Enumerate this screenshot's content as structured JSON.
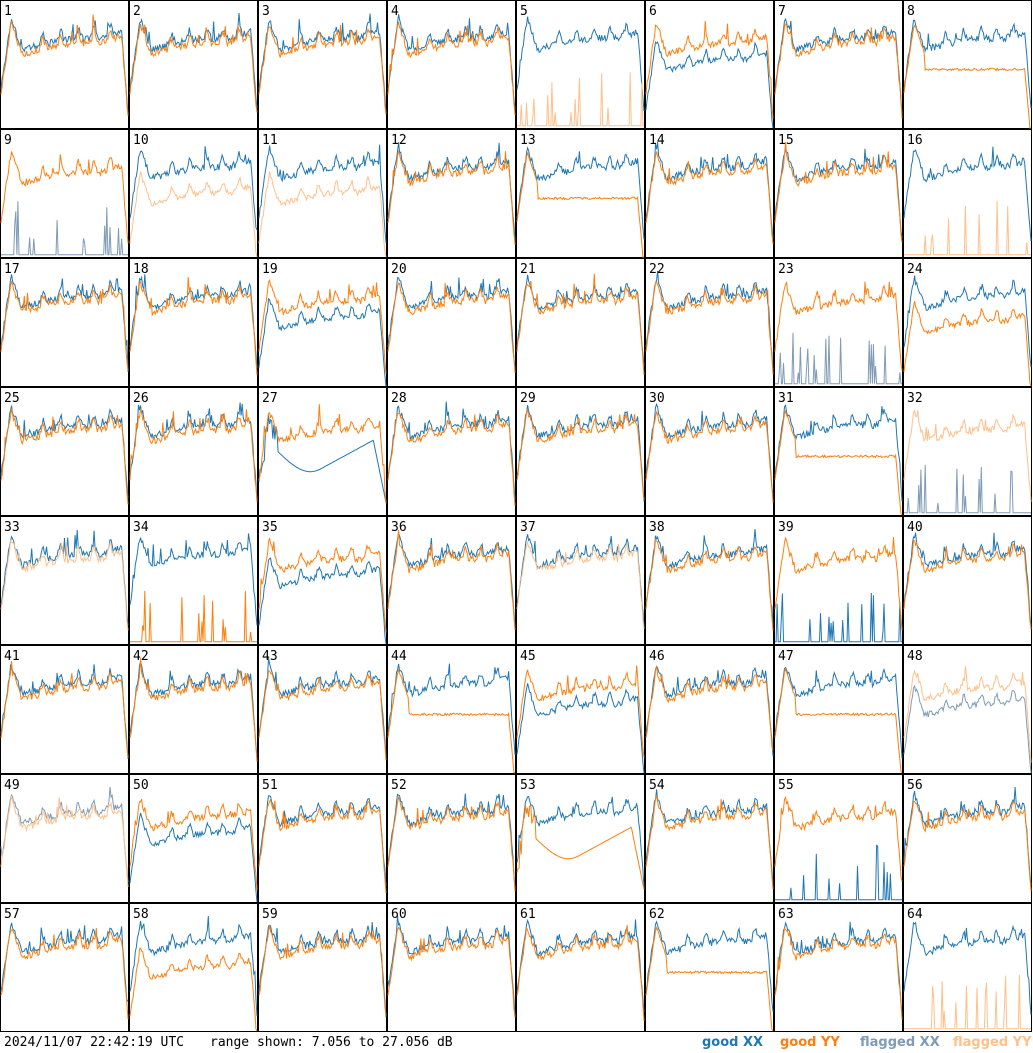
{
  "footer": {
    "timestamp": "2024/11/07 22:42:19 UTC",
    "range_text": "range shown: 7.056 to 27.056 dB"
  },
  "legend": [
    {
      "label": "good XX",
      "color": "#1f77b4"
    },
    {
      "label": "good YY",
      "color": "#ff7f0e"
    },
    {
      "label": "flagged XX",
      "color": "#7f9bb5"
    },
    {
      "label": "flagged YY",
      "color": "#ffc08a"
    }
  ],
  "chart_data": {
    "type": "line",
    "layout": "8x8 small multiples",
    "range_db": [
      7.056,
      27.056
    ],
    "grid": false,
    "panels": [
      {
        "id": "1",
        "xx": "good",
        "yy": "good",
        "xx_shape": "normal",
        "yy_shape": "normal"
      },
      {
        "id": "2",
        "xx": "good",
        "yy": "good",
        "xx_shape": "normal",
        "yy_shape": "normal"
      },
      {
        "id": "3",
        "xx": "good",
        "yy": "good",
        "xx_shape": "normal",
        "yy_shape": "normal"
      },
      {
        "id": "4",
        "xx": "good",
        "yy": "good",
        "xx_shape": "normal",
        "yy_shape": "normal"
      },
      {
        "id": "5",
        "xx": "good",
        "yy": "flagged",
        "xx_shape": "normal",
        "yy_shape": "spikes"
      },
      {
        "id": "6",
        "xx": "good",
        "yy": "good",
        "xx_shape": "low",
        "yy_shape": "normal"
      },
      {
        "id": "7",
        "xx": "good",
        "yy": "good",
        "xx_shape": "normal",
        "yy_shape": "normal"
      },
      {
        "id": "8",
        "xx": "good",
        "yy": "good",
        "xx_shape": "normal",
        "yy_shape": "flat"
      },
      {
        "id": "9",
        "xx": "flagged",
        "yy": "good",
        "xx_shape": "spikes",
        "yy_shape": "normal"
      },
      {
        "id": "10",
        "xx": "good",
        "yy": "flagged",
        "xx_shape": "normal",
        "yy_shape": "low"
      },
      {
        "id": "11",
        "xx": "good",
        "yy": "flagged",
        "xx_shape": "normal",
        "yy_shape": "low"
      },
      {
        "id": "12",
        "xx": "good",
        "yy": "good",
        "xx_shape": "normal",
        "yy_shape": "normal"
      },
      {
        "id": "13",
        "xx": "good",
        "yy": "good",
        "xx_shape": "normal",
        "yy_shape": "flat"
      },
      {
        "id": "14",
        "xx": "good",
        "yy": "good",
        "xx_shape": "normal",
        "yy_shape": "normal"
      },
      {
        "id": "15",
        "xx": "good",
        "yy": "good",
        "xx_shape": "normal",
        "yy_shape": "normal"
      },
      {
        "id": "16",
        "xx": "good",
        "yy": "flagged",
        "xx_shape": "normal",
        "yy_shape": "spikes"
      },
      {
        "id": "17",
        "xx": "good",
        "yy": "good",
        "xx_shape": "normal",
        "yy_shape": "normal"
      },
      {
        "id": "18",
        "xx": "good",
        "yy": "good",
        "xx_shape": "normal",
        "yy_shape": "normal"
      },
      {
        "id": "19",
        "xx": "good",
        "yy": "good",
        "xx_shape": "low",
        "yy_shape": "normal"
      },
      {
        "id": "20",
        "xx": "good",
        "yy": "good",
        "xx_shape": "normal",
        "yy_shape": "normal"
      },
      {
        "id": "21",
        "xx": "good",
        "yy": "good",
        "xx_shape": "normal",
        "yy_shape": "normal"
      },
      {
        "id": "22",
        "xx": "good",
        "yy": "good",
        "xx_shape": "normal",
        "yy_shape": "normal"
      },
      {
        "id": "23",
        "xx": "flagged",
        "yy": "good",
        "xx_shape": "spikes",
        "yy_shape": "normal"
      },
      {
        "id": "24",
        "xx": "good",
        "yy": "good",
        "xx_shape": "normal",
        "yy_shape": "low"
      },
      {
        "id": "25",
        "xx": "good",
        "yy": "good",
        "xx_shape": "normal",
        "yy_shape": "normal"
      },
      {
        "id": "26",
        "xx": "good",
        "yy": "good",
        "xx_shape": "normal",
        "yy_shape": "normal"
      },
      {
        "id": "27",
        "xx": "good",
        "yy": "good",
        "xx_shape": "dip",
        "yy_shape": "normal"
      },
      {
        "id": "28",
        "xx": "good",
        "yy": "good",
        "xx_shape": "normal",
        "yy_shape": "normal"
      },
      {
        "id": "29",
        "xx": "good",
        "yy": "good",
        "xx_shape": "normal",
        "yy_shape": "normal"
      },
      {
        "id": "30",
        "xx": "good",
        "yy": "good",
        "xx_shape": "normal",
        "yy_shape": "normal"
      },
      {
        "id": "31",
        "xx": "good",
        "yy": "good",
        "xx_shape": "normal",
        "yy_shape": "flat"
      },
      {
        "id": "32",
        "xx": "flagged",
        "yy": "flagged",
        "xx_shape": "spikes",
        "yy_shape": "normal"
      },
      {
        "id": "33",
        "xx": "good",
        "yy": "flagged",
        "xx_shape": "normal",
        "yy_shape": "normal"
      },
      {
        "id": "34",
        "xx": "good",
        "yy": "good",
        "xx_shape": "normal",
        "yy_shape": "spikes"
      },
      {
        "id": "35",
        "xx": "good",
        "yy": "good",
        "xx_shape": "low",
        "yy_shape": "normal"
      },
      {
        "id": "36",
        "xx": "good",
        "yy": "good",
        "xx_shape": "normal",
        "yy_shape": "normal"
      },
      {
        "id": "37",
        "xx": "good",
        "yy": "flagged",
        "xx_shape": "normal",
        "yy_shape": "normal"
      },
      {
        "id": "38",
        "xx": "good",
        "yy": "good",
        "xx_shape": "normal",
        "yy_shape": "normal"
      },
      {
        "id": "39",
        "xx": "good",
        "yy": "good",
        "xx_shape": "spikes",
        "yy_shape": "normal"
      },
      {
        "id": "40",
        "xx": "good",
        "yy": "good",
        "xx_shape": "normal",
        "yy_shape": "normal"
      },
      {
        "id": "41",
        "xx": "good",
        "yy": "good",
        "xx_shape": "normal",
        "yy_shape": "normal"
      },
      {
        "id": "42",
        "xx": "good",
        "yy": "good",
        "xx_shape": "normal",
        "yy_shape": "normal"
      },
      {
        "id": "43",
        "xx": "good",
        "yy": "good",
        "xx_shape": "normal",
        "yy_shape": "normal"
      },
      {
        "id": "44",
        "xx": "good",
        "yy": "good",
        "xx_shape": "normal",
        "yy_shape": "flat"
      },
      {
        "id": "45",
        "xx": "good",
        "yy": "good",
        "xx_shape": "low",
        "yy_shape": "normal"
      },
      {
        "id": "46",
        "xx": "good",
        "yy": "good",
        "xx_shape": "normal",
        "yy_shape": "normal"
      },
      {
        "id": "47",
        "xx": "good",
        "yy": "good",
        "xx_shape": "normal",
        "yy_shape": "flat"
      },
      {
        "id": "48",
        "xx": "flagged",
        "yy": "flagged",
        "xx_shape": "low",
        "yy_shape": "normal"
      },
      {
        "id": "49",
        "xx": "flagged",
        "yy": "flagged",
        "xx_shape": "normal",
        "yy_shape": "normal"
      },
      {
        "id": "50",
        "xx": "good",
        "yy": "good",
        "xx_shape": "low",
        "yy_shape": "normal"
      },
      {
        "id": "51",
        "xx": "good",
        "yy": "good",
        "xx_shape": "normal",
        "yy_shape": "normal"
      },
      {
        "id": "52",
        "xx": "good",
        "yy": "good",
        "xx_shape": "normal",
        "yy_shape": "normal"
      },
      {
        "id": "53",
        "xx": "good",
        "yy": "good",
        "xx_shape": "normal",
        "yy_shape": "dip"
      },
      {
        "id": "54",
        "xx": "good",
        "yy": "good",
        "xx_shape": "normal",
        "yy_shape": "normal"
      },
      {
        "id": "55",
        "xx": "good",
        "yy": "good",
        "xx_shape": "spikes",
        "yy_shape": "normal"
      },
      {
        "id": "56",
        "xx": "good",
        "yy": "good",
        "xx_shape": "normal",
        "yy_shape": "normal"
      },
      {
        "id": "57",
        "xx": "good",
        "yy": "good",
        "xx_shape": "normal",
        "yy_shape": "normal"
      },
      {
        "id": "58",
        "xx": "good",
        "yy": "good",
        "xx_shape": "normal",
        "yy_shape": "low"
      },
      {
        "id": "59",
        "xx": "good",
        "yy": "good",
        "xx_shape": "normal",
        "yy_shape": "normal"
      },
      {
        "id": "60",
        "xx": "good",
        "yy": "good",
        "xx_shape": "normal",
        "yy_shape": "normal"
      },
      {
        "id": "61",
        "xx": "good",
        "yy": "good",
        "xx_shape": "normal",
        "yy_shape": "normal"
      },
      {
        "id": "62",
        "xx": "good",
        "yy": "good",
        "xx_shape": "normal",
        "yy_shape": "flat"
      },
      {
        "id": "63",
        "xx": "good",
        "yy": "good",
        "xx_shape": "normal",
        "yy_shape": "normal"
      },
      {
        "id": "64",
        "xx": "good",
        "yy": "flagged",
        "xx_shape": "normal",
        "yy_shape": "spikes"
      }
    ]
  }
}
